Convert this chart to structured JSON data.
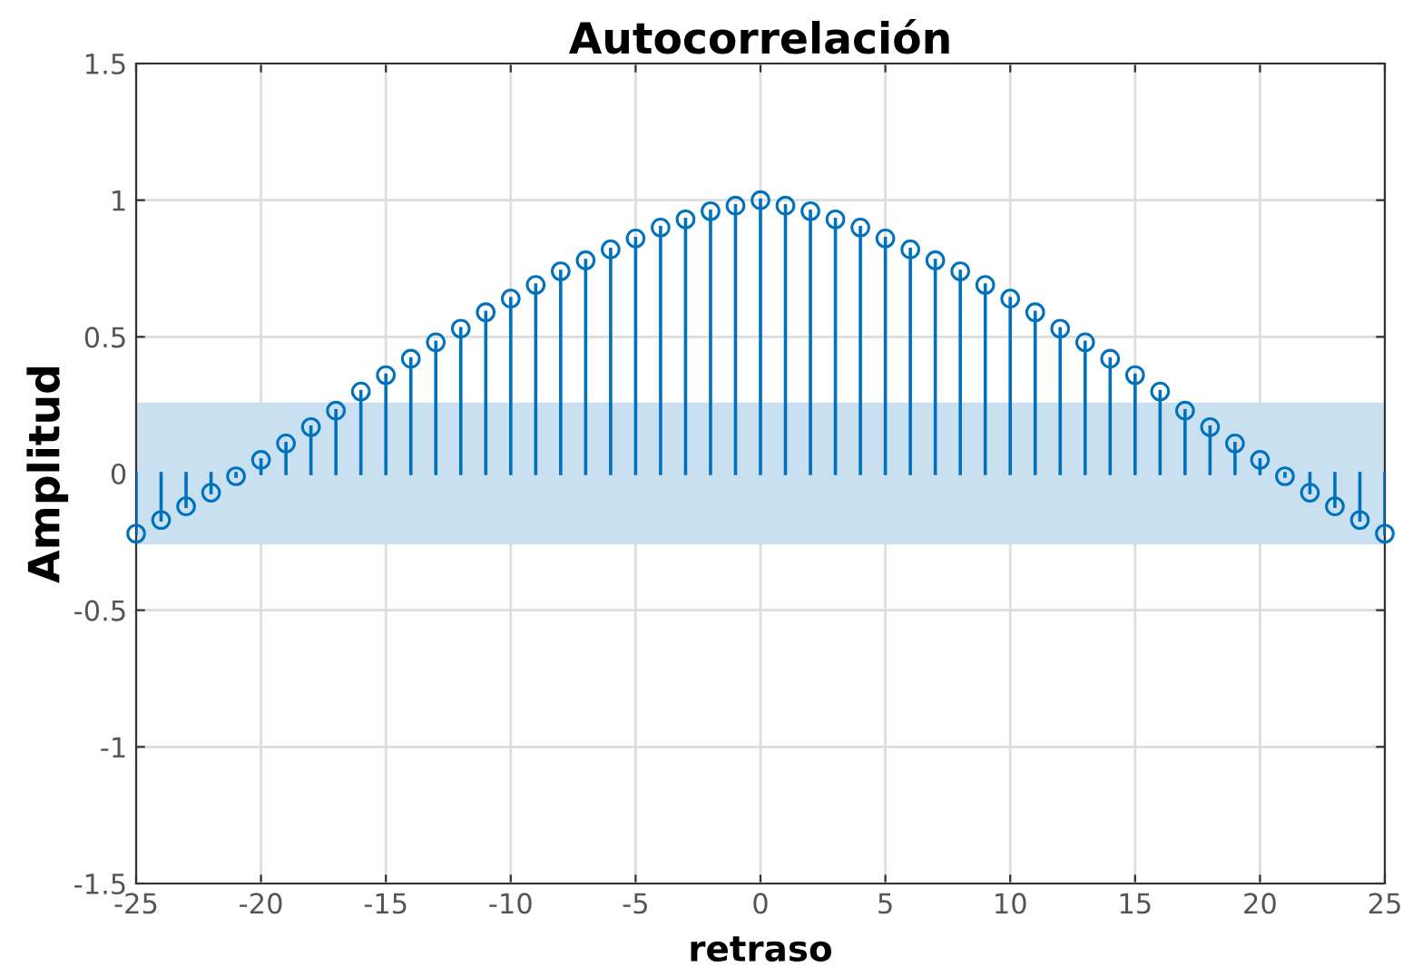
{
  "chart_data": {
    "type": "lollipop",
    "title": "Autocorrelación",
    "xlabel": "retraso",
    "ylabel": "Amplitud",
    "x": [
      -25,
      -24,
      -23,
      -22,
      -21,
      -20,
      -19,
      -18,
      -17,
      -16,
      -15,
      -14,
      -13,
      -12,
      -11,
      -10,
      -9,
      -8,
      -7,
      -6,
      -5,
      -4,
      -3,
      -2,
      -1,
      0,
      1,
      2,
      3,
      4,
      5,
      6,
      7,
      8,
      9,
      10,
      11,
      12,
      13,
      14,
      15,
      16,
      17,
      18,
      19,
      20,
      21,
      22,
      23,
      24,
      25
    ],
    "series": [
      {
        "color": "#0072bd",
        "values": [
          -0.22,
          -0.17,
          -0.12,
          -0.07,
          -0.01,
          0.05,
          0.11,
          0.17,
          0.23,
          0.3,
          0.36,
          0.42,
          0.48,
          0.53,
          0.59,
          0.64,
          0.69,
          0.74,
          0.78,
          0.82,
          0.86,
          0.9,
          0.93,
          0.96,
          0.98,
          1.0,
          0.98,
          0.96,
          0.93,
          0.9,
          0.86,
          0.82,
          0.78,
          0.74,
          0.69,
          0.64,
          0.59,
          0.53,
          0.48,
          0.42,
          0.36,
          0.3,
          0.23,
          0.17,
          0.11,
          0.05,
          -0.01,
          -0.07,
          -0.12,
          -0.17,
          -0.22
        ]
      }
    ],
    "marker": "circle",
    "bands": [
      {
        "axis": "y",
        "from": -0.26,
        "to": 0.26,
        "color": "#c8e0f0"
      }
    ],
    "xlim": [
      -25,
      25
    ],
    "xticks": [
      {
        "value": -25,
        "label": "-25"
      },
      {
        "value": -20,
        "label": "-20"
      },
      {
        "value": -15,
        "label": "-15"
      },
      {
        "value": -10,
        "label": "-10"
      },
      {
        "value": -5,
        "label": "-5"
      },
      0,
      5,
      10,
      15,
      20,
      25
    ],
    "ylim": [
      -1.5,
      1.5
    ],
    "yticks": [
      {
        "value": -1.5,
        "label": "-1.5"
      },
      {
        "value": -1,
        "label": "-1"
      },
      {
        "value": -0.5,
        "label": "-0.5"
      },
      0,
      0.5,
      1,
      1.5
    ],
    "grid": true
  }
}
